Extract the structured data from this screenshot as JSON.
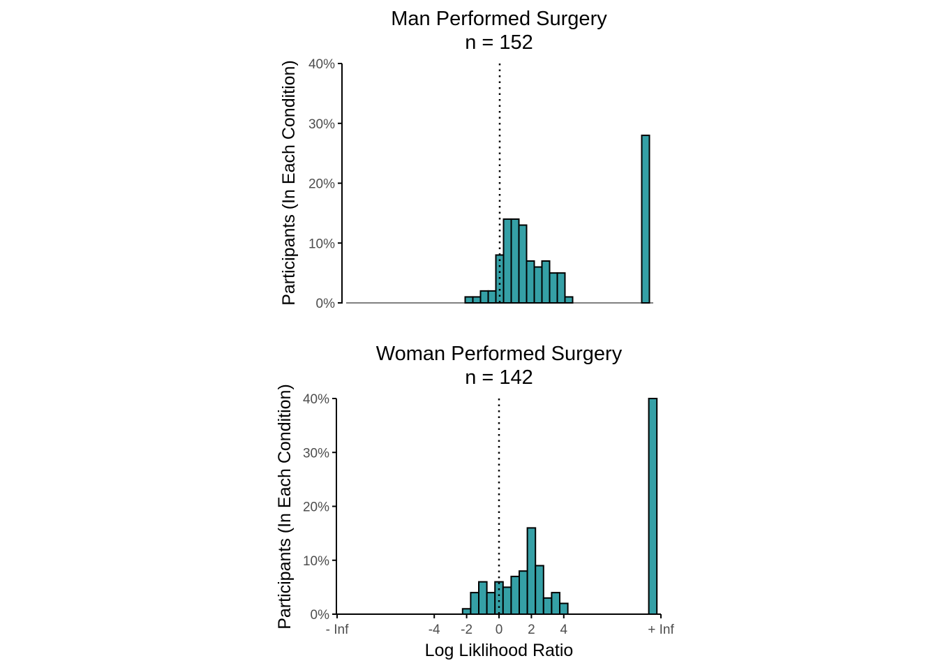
{
  "colors": {
    "bar_fill": "#35A0A6",
    "bar_stroke": "#000000",
    "axis": "#000000",
    "tick_text": "#4D4D4D",
    "title_text": "#000000"
  },
  "chart_data": [
    {
      "type": "bar",
      "title": "Man Performed Surgery",
      "subtitle": "n = 152",
      "ylabel": "Participants (In Each Condition)",
      "xlabel": "",
      "ylim": [
        0,
        40
      ],
      "yticks": [
        "0%",
        "10%",
        "20%",
        "30%",
        "40%"
      ],
      "xlim": [
        -10,
        10
      ],
      "grid": false,
      "reference_line": {
        "x": 0,
        "style": "dotted"
      },
      "x_axis_visible": false,
      "bin_width": 0.5,
      "bins": [
        {
          "x": -2.0,
          "value": 1
        },
        {
          "x": -1.5,
          "value": 1
        },
        {
          "x": -1.0,
          "value": 2
        },
        {
          "x": -0.5,
          "value": 2
        },
        {
          "x": 0.0,
          "value": 8
        },
        {
          "x": 0.5,
          "value": 14
        },
        {
          "x": 1.0,
          "value": 14
        },
        {
          "x": 1.5,
          "value": 13
        },
        {
          "x": 2.0,
          "value": 7
        },
        {
          "x": 2.5,
          "value": 6
        },
        {
          "x": 3.0,
          "value": 7
        },
        {
          "x": 3.5,
          "value": 5
        },
        {
          "x": 4.0,
          "value": 5
        },
        {
          "x": 4.5,
          "value": 1
        },
        {
          "x": 9.5,
          "value": 28
        }
      ]
    },
    {
      "type": "bar",
      "title": "Woman Performed Surgery",
      "subtitle": "n = 142",
      "ylabel": "Participants (In Each Condition)",
      "xlabel": "Log Liklihood Ratio",
      "ylim": [
        0,
        40
      ],
      "yticks": [
        "0%",
        "10%",
        "20%",
        "30%",
        "40%"
      ],
      "xlim": [
        -10,
        10
      ],
      "xticks": [
        {
          "x": -10,
          "label": "- Inf"
        },
        {
          "x": -4,
          "label": "-4"
        },
        {
          "x": -2,
          "label": "-2"
        },
        {
          "x": 0,
          "label": "0"
        },
        {
          "x": 2,
          "label": "2"
        },
        {
          "x": 4,
          "label": "4"
        },
        {
          "x": 10,
          "label": "+ Inf"
        }
      ],
      "grid": false,
      "reference_line": {
        "x": 0,
        "style": "dotted"
      },
      "x_axis_visible": true,
      "bin_width": 0.5,
      "bins": [
        {
          "x": -2.0,
          "value": 1
        },
        {
          "x": -1.5,
          "value": 4
        },
        {
          "x": -1.0,
          "value": 6
        },
        {
          "x": -0.5,
          "value": 4
        },
        {
          "x": 0.0,
          "value": 6
        },
        {
          "x": 0.5,
          "value": 5
        },
        {
          "x": 1.0,
          "value": 7
        },
        {
          "x": 1.5,
          "value": 8
        },
        {
          "x": 2.0,
          "value": 16
        },
        {
          "x": 2.5,
          "value": 9
        },
        {
          "x": 3.0,
          "value": 3
        },
        {
          "x": 3.5,
          "value": 4
        },
        {
          "x": 4.0,
          "value": 2
        },
        {
          "x": 9.5,
          "value": 40
        }
      ]
    }
  ]
}
